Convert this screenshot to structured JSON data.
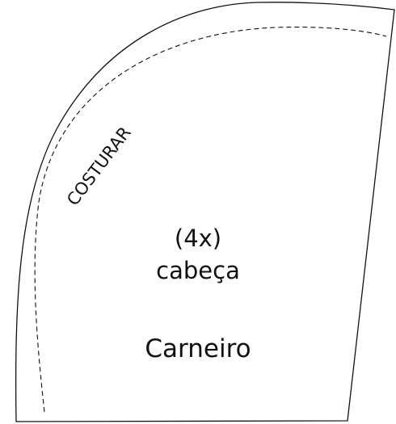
{
  "pattern": {
    "seam_label": "COSTURAR",
    "quantity": "(4x)",
    "part": "cabeça",
    "name": "Carneiro"
  }
}
